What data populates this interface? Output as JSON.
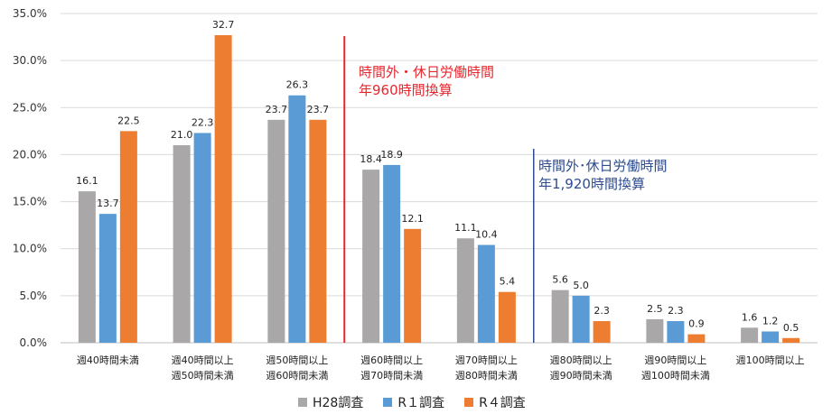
{
  "chart_data": {
    "type": "bar",
    "categories": [
      [
        "週40時間未満"
      ],
      [
        "週40時間以上",
        "週50時間未満"
      ],
      [
        "週50時間以上",
        "週60時間未満"
      ],
      [
        "週60時間以上",
        "週70時間未満"
      ],
      [
        "週70時間以上",
        "週80時間未満"
      ],
      [
        "週80時間以上",
        "週90時間未満"
      ],
      [
        "週90時間以上",
        "週100時間未満"
      ],
      [
        "週100時間以上"
      ]
    ],
    "series": [
      {
        "name": "H28調査",
        "color": "#a9a7a7",
        "values": [
          16.1,
          21.0,
          23.7,
          18.4,
          11.1,
          5.6,
          2.5,
          1.6
        ]
      },
      {
        "name": "R１調査",
        "color": "#5b9bd5",
        "values": [
          13.7,
          22.3,
          26.3,
          18.9,
          10.4,
          5.0,
          2.3,
          1.2
        ]
      },
      {
        "name": "R４調査",
        "color": "#ed7d31",
        "values": [
          22.5,
          32.7,
          23.7,
          12.1,
          5.4,
          2.3,
          0.9,
          0.5
        ]
      }
    ],
    "ylim": [
      0,
      35
    ],
    "yticks": [
      "0.0%",
      "5.0%",
      "10.0%",
      "15.0%",
      "20.0%",
      "25.0%",
      "30.0%",
      "35.0%"
    ],
    "grid": true,
    "legend_position": "bottom",
    "annotations": [
      {
        "lines": [
          "時間外・休日労働時間",
          "年960時間換算"
        ],
        "color": "#e8262d",
        "after_category": 2
      },
      {
        "lines": [
          "時間外･休日労働時間",
          "年1,920時間換算"
        ],
        "color": "#2e4c8e",
        "after_category": 4
      }
    ]
  }
}
